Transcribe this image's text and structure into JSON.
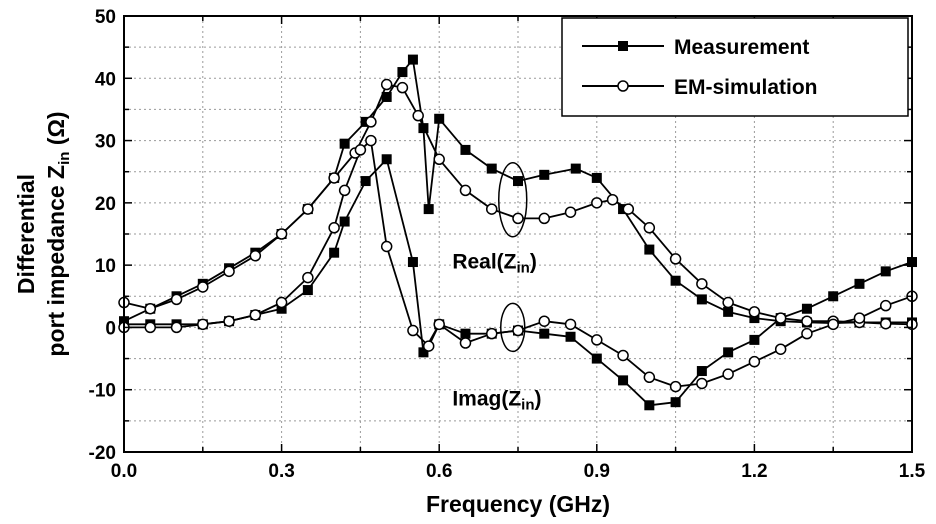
{
  "chart_data": {
    "type": "line",
    "xlabel": "Frequency (GHz)",
    "ylabel_line1": "Differential",
    "ylabel_line2_prefix": "port impedance Z",
    "ylabel_line2_sub": "in",
    "ylabel_line2_suffix": " (Ω)",
    "xlim": [
      0.0,
      1.5
    ],
    "ylim": [
      -20,
      50
    ],
    "xticks": [
      "0.0",
      "0.3",
      "0.6",
      "0.9",
      "1.2",
      "1.5"
    ],
    "yticks": [
      "-20",
      "-10",
      "0",
      "10",
      "20",
      "30",
      "40",
      "50"
    ],
    "grid": true,
    "legend_position": "top-right",
    "annotations": {
      "real": {
        "prefix": "Real(Z",
        "sub": "in",
        "suffix": ")"
      },
      "imag": {
        "prefix": "Imag(Z",
        "sub": "in",
        "suffix": ")"
      }
    },
    "series": [
      {
        "name": "Measurement",
        "marker": "filled-square",
        "color": "#000000",
        "curves": {
          "real": {
            "x": [
              0.0,
              0.05,
              0.1,
              0.15,
              0.2,
              0.25,
              0.3,
              0.35,
              0.4,
              0.42,
              0.46,
              0.5,
              0.53,
              0.55,
              0.57,
              0.58,
              0.6,
              0.65,
              0.7,
              0.75,
              0.8,
              0.86,
              0.9,
              0.95,
              1.0,
              1.05,
              1.1,
              1.15,
              1.2,
              1.25,
              1.3,
              1.35,
              1.4,
              1.45,
              1.5
            ],
            "y": [
              1,
              3,
              5,
              7,
              9.5,
              12,
              15,
              19,
              24,
              29.5,
              33,
              37,
              41,
              43,
              32,
              19,
              33.5,
              28.5,
              25.5,
              23.5,
              24.5,
              25.5,
              24,
              19,
              12.5,
              7.5,
              4.5,
              2.5,
              1.5,
              1.0,
              0.8,
              0.7,
              0.8,
              0.8,
              0.8
            ]
          },
          "imag": {
            "x": [
              0.0,
              0.05,
              0.1,
              0.15,
              0.2,
              0.25,
              0.3,
              0.35,
              0.4,
              0.42,
              0.46,
              0.5,
              0.55,
              0.57,
              0.6,
              0.65,
              0.7,
              0.75,
              0.8,
              0.85,
              0.9,
              0.95,
              1.0,
              1.05,
              1.1,
              1.15,
              1.2,
              1.25,
              1.3,
              1.35,
              1.4,
              1.45,
              1.5
            ],
            "y": [
              0.5,
              0.5,
              0.5,
              0.5,
              1,
              2,
              3,
              6,
              12,
              17,
              23.5,
              27,
              10.5,
              -4,
              0.5,
              -1,
              -1,
              -0.5,
              -1,
              -1.5,
              -5,
              -8.5,
              -12.5,
              -12,
              -7,
              -4,
              -2,
              1.5,
              3,
              5,
              7,
              9,
              10.5
            ]
          }
        }
      },
      {
        "name": "EM-simulation",
        "marker": "open-circle",
        "color": "#000000",
        "curves": {
          "real": {
            "x": [
              0.0,
              0.05,
              0.1,
              0.15,
              0.2,
              0.25,
              0.3,
              0.35,
              0.4,
              0.44,
              0.47,
              0.5,
              0.53,
              0.56,
              0.6,
              0.65,
              0.7,
              0.75,
              0.8,
              0.85,
              0.9,
              0.93,
              0.96,
              1.0,
              1.05,
              1.1,
              1.15,
              1.2,
              1.25,
              1.3,
              1.35,
              1.4,
              1.45,
              1.5
            ],
            "y": [
              4,
              3,
              4.5,
              6.5,
              9,
              11.5,
              15,
              19,
              24,
              28,
              33,
              39,
              38.5,
              34,
              27,
              22,
              19,
              17.5,
              17.5,
              18.5,
              20,
              20.5,
              19,
              16,
              11,
              7,
              4,
              2.5,
              1.5,
              1.0,
              1.0,
              0.8,
              0.6,
              0.5
            ]
          },
          "imag": {
            "x": [
              0.0,
              0.05,
              0.1,
              0.15,
              0.2,
              0.25,
              0.3,
              0.35,
              0.4,
              0.42,
              0.45,
              0.47,
              0.5,
              0.55,
              0.58,
              0.6,
              0.65,
              0.7,
              0.75,
              0.8,
              0.85,
              0.9,
              0.95,
              1.0,
              1.05,
              1.1,
              1.15,
              1.2,
              1.25,
              1.3,
              1.35,
              1.4,
              1.45,
              1.5
            ],
            "y": [
              0.0,
              0.0,
              0.0,
              0.5,
              1,
              2,
              4,
              8,
              16,
              22,
              28.5,
              30,
              13,
              -0.5,
              -3,
              0.5,
              -2.5,
              -1,
              -0.5,
              1,
              0.5,
              -2,
              -4.5,
              -8,
              -9.5,
              -9,
              -7.5,
              -5.5,
              -3.5,
              -1,
              0.5,
              1.5,
              3.5,
              5
            ]
          }
        }
      }
    ]
  }
}
